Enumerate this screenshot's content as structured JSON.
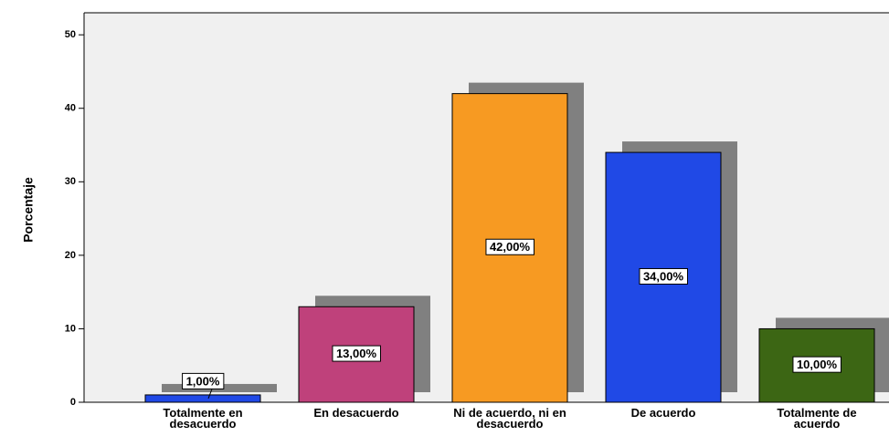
{
  "chart_data": {
    "type": "bar",
    "ylabel": "Porcentaje",
    "categories": [
      "Totalmente en desacuerdo",
      "En desacuerdo",
      "Ni de acuerdo, ni en desacuerdo",
      "De acuerdo",
      "Totalmente de acuerdo"
    ],
    "values": [
      1,
      13,
      42,
      34,
      10
    ],
    "value_labels": [
      "1,00%",
      "13,00%",
      "42,00%",
      "34,00%",
      "10,00%"
    ],
    "colors": [
      "#2049e6",
      "#bf417b",
      "#f79a22",
      "#2049e6",
      "#3c6614"
    ],
    "ylim": [
      0,
      53
    ],
    "yticks": [
      0,
      10,
      20,
      30,
      40,
      50
    ]
  }
}
